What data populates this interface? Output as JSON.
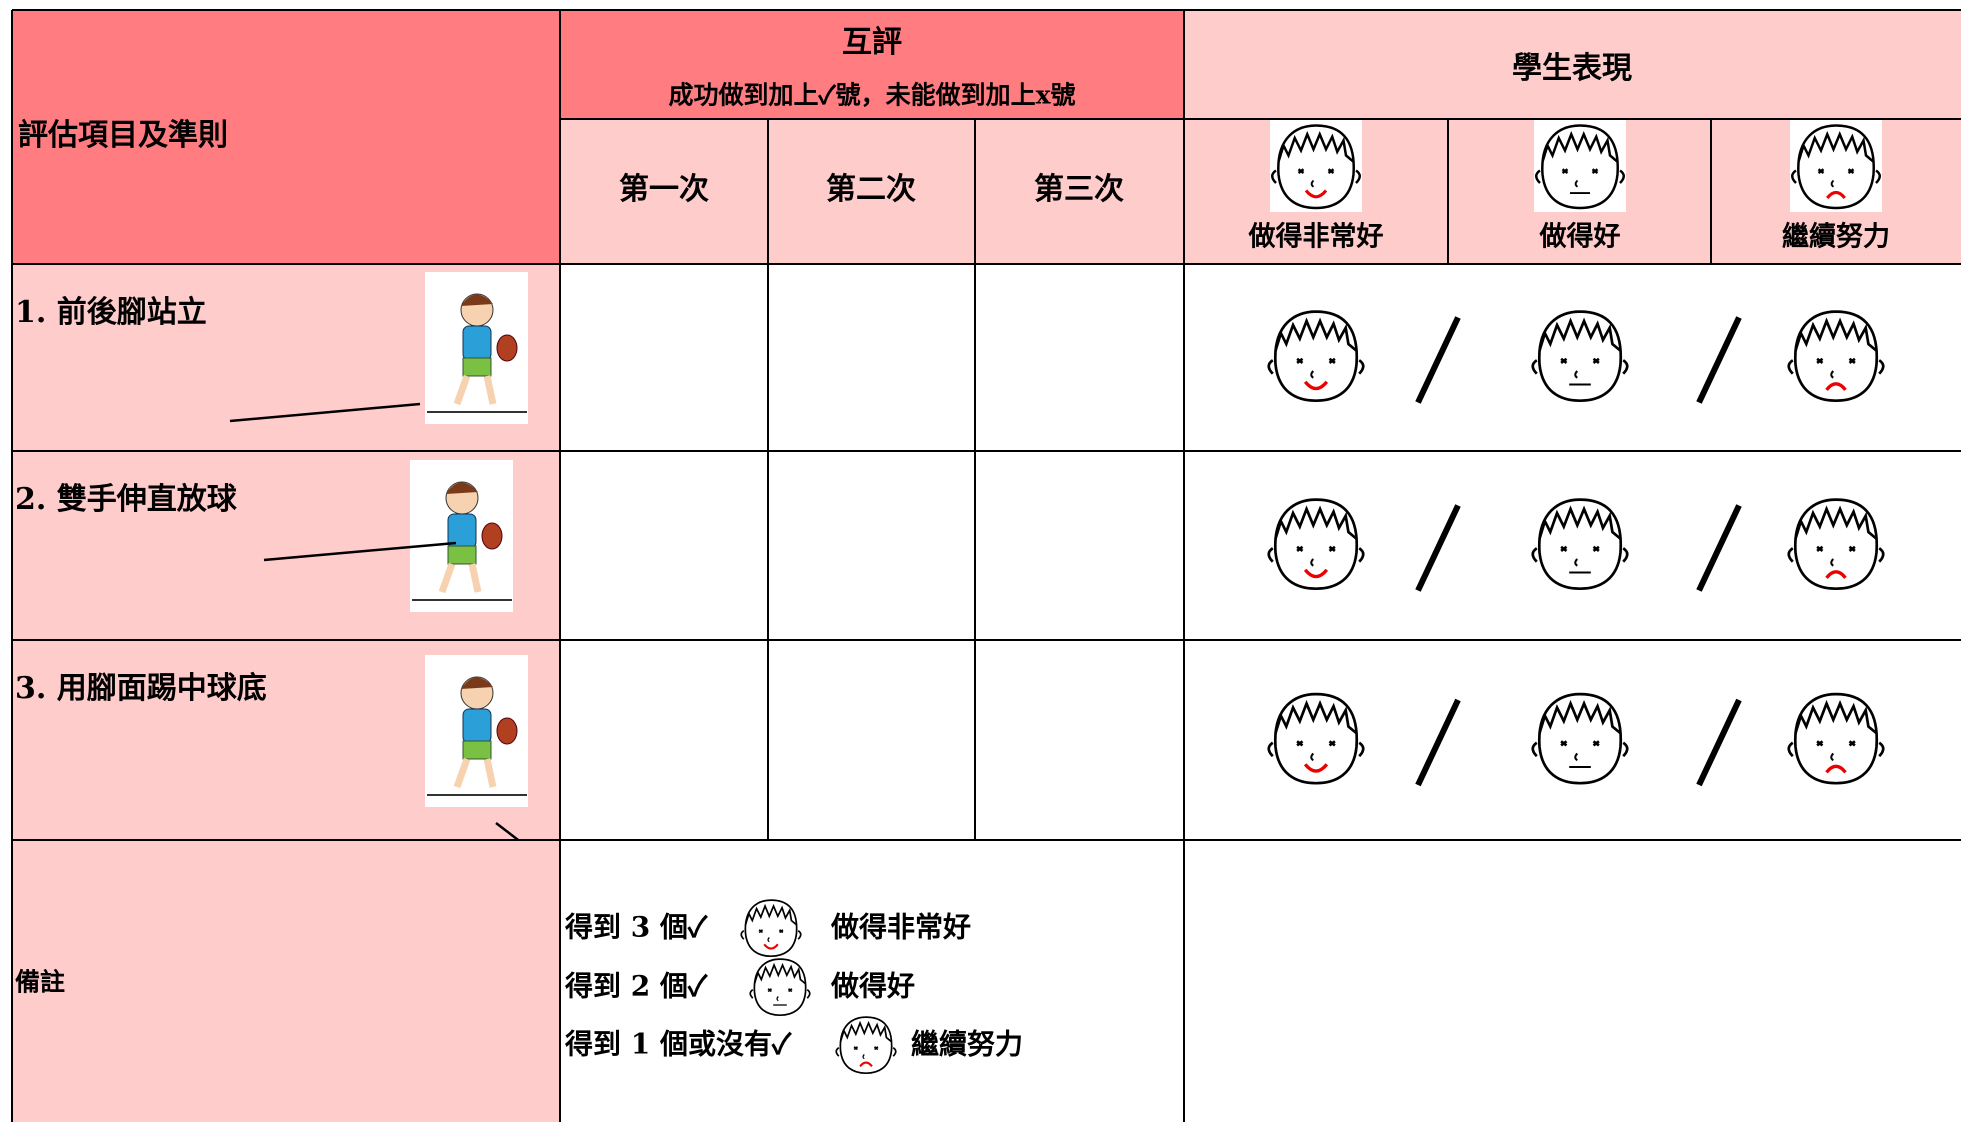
{
  "header": {
    "criteria_label": "評估項目及準則",
    "peer_title": "互評",
    "peer_instruction": "成功做到加上✓號，未能做到加上x號",
    "attempts": [
      "第一次",
      "第二次",
      "第三次"
    ],
    "performance_title": "學生表現",
    "levels": [
      "做得非常好",
      "做得好",
      "繼續努力"
    ]
  },
  "rows": [
    "1. 前後腳站立",
    "2. 雙手伸直放球",
    "3. 用腳面踢中球底"
  ],
  "remarks": {
    "label": "備註",
    "lines": [
      {
        "text": "得到 3 個✓",
        "level": "做得非常好"
      },
      {
        "text": "得到 2 個✓",
        "level": "做得好"
      },
      {
        "text": "得到 1 個或沒有✓",
        "level": "繼續努力"
      }
    ]
  }
}
